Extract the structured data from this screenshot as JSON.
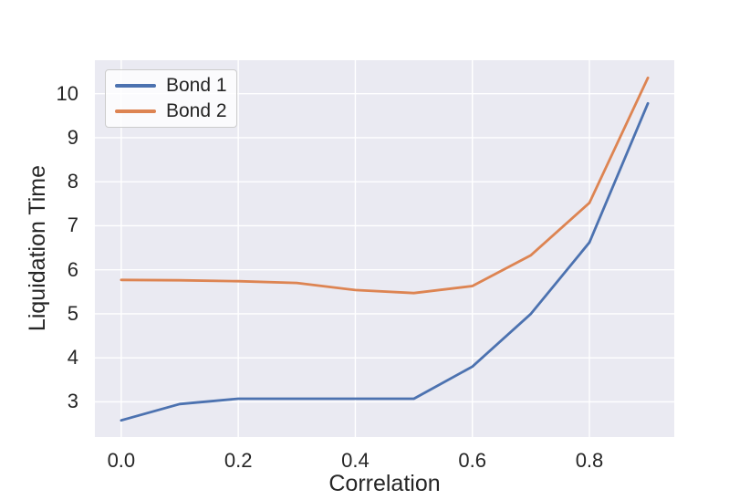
{
  "chart_data": {
    "type": "line",
    "title": "",
    "xlabel": "Correlation",
    "ylabel": "Liquidation Time",
    "x": [
      0.0,
      0.1,
      0.2,
      0.3,
      0.4,
      0.5,
      0.6,
      0.7,
      0.8,
      0.9
    ],
    "series": [
      {
        "name": "Bond 1",
        "color": "#4c72b0",
        "values": [
          2.58,
          2.95,
          3.07,
          3.07,
          3.07,
          3.07,
          3.8,
          5.0,
          6.62,
          9.78
        ]
      },
      {
        "name": "Bond 2",
        "color": "#dd8452",
        "values": [
          5.77,
          5.76,
          5.74,
          5.7,
          5.54,
          5.47,
          5.63,
          6.33,
          7.52,
          10.36
        ]
      }
    ],
    "xticks": [
      0.0,
      0.2,
      0.4,
      0.6,
      0.8
    ],
    "xtick_labels": [
      "0.0",
      "0.2",
      "0.4",
      "0.6",
      "0.8"
    ],
    "yticks": [
      3,
      4,
      5,
      6,
      7,
      8,
      9,
      10
    ],
    "ytick_labels": [
      "3",
      "4",
      "5",
      "6",
      "7",
      "8",
      "9",
      "10"
    ],
    "xlim": [
      -0.045,
      0.945
    ],
    "ylim": [
      2.2,
      10.76
    ],
    "grid": true,
    "legend": {
      "position": "upper-left",
      "entries": [
        "Bond 1",
        "Bond 2"
      ]
    },
    "colors": {
      "plot_background": "#eaeaf2",
      "gridline": "#ffffff",
      "text": "#262626",
      "legend_border": "#cccccc",
      "legend_background": "rgba(255,255,255,0.8)"
    }
  }
}
